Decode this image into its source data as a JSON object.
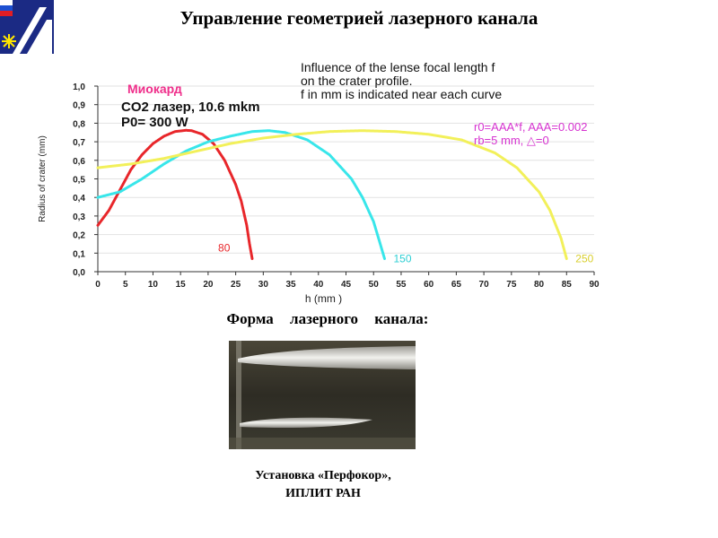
{
  "page": {
    "title": "Управление  геометрией лазерного канала",
    "subtitle": "Форма    лазерного    канала:",
    "caption_line1": "Установка «Перфокор»,",
    "caption_line2": "ИПЛИТ РАН"
  },
  "chart_data": {
    "type": "line",
    "title": "",
    "xlabel": "h (mm )",
    "ylabel": "Radius of crater (mm)",
    "xlim": [
      0,
      90
    ],
    "ylim": [
      0,
      1.0
    ],
    "xticks": [
      0,
      5,
      10,
      15,
      20,
      25,
      30,
      35,
      40,
      45,
      50,
      55,
      60,
      65,
      70,
      75,
      80,
      85,
      90
    ],
    "xtick_labels": [
      "0",
      "5",
      "10",
      "15",
      "20",
      "25",
      "30",
      "35",
      "40",
      "45",
      "50",
      "55",
      "60",
      "65",
      "70",
      "75",
      "80",
      "85",
      "90"
    ],
    "yticks": [
      0,
      0.1,
      0.2,
      0.3,
      0.4,
      0.5,
      0.6,
      0.7,
      0.8,
      0.9,
      1.0
    ],
    "ytick_labels": [
      "0,0",
      "0,1",
      "0,2",
      "0,3",
      "0,4",
      "0,5",
      "0,6",
      "0,7",
      "0,8",
      "0,9",
      "1,0"
    ],
    "annotations": {
      "tissue": "Миокард",
      "laser": "CO2 лазер, 10.6 mkm",
      "power": "P0= 300  W",
      "influence_line1": "Influence of the lense focal length f",
      "influence_line2": "on the crater profile.",
      "influence_line3": "f in mm is indicated near each curve",
      "params_line1": "r0=AAA*f, AAA=0.002",
      "params_line2": "rb=5 mm, △=0"
    },
    "series": [
      {
        "name": "80",
        "color": "#e8262a",
        "x": [
          0,
          2,
          4,
          6,
          8,
          10,
          12,
          14,
          16,
          17,
          19,
          21,
          23,
          25,
          26,
          27,
          27.5,
          28
        ],
        "y": [
          0.25,
          0.33,
          0.44,
          0.55,
          0.63,
          0.69,
          0.73,
          0.755,
          0.762,
          0.76,
          0.74,
          0.69,
          0.6,
          0.47,
          0.38,
          0.25,
          0.15,
          0.07
        ]
      },
      {
        "name": "150",
        "color": "#38e6ea",
        "x": [
          0,
          4,
          8,
          12,
          16,
          20,
          24,
          28,
          31,
          34,
          38,
          42,
          46,
          48,
          50,
          51,
          52
        ],
        "y": [
          0.4,
          0.43,
          0.5,
          0.58,
          0.65,
          0.7,
          0.73,
          0.755,
          0.76,
          0.75,
          0.71,
          0.63,
          0.5,
          0.4,
          0.27,
          0.17,
          0.07
        ]
      },
      {
        "name": "250",
        "color": "#f2f05a",
        "x": [
          0,
          6,
          12,
          18,
          24,
          30,
          36,
          42,
          48,
          54,
          60,
          66,
          72,
          76,
          80,
          82,
          84,
          85
        ],
        "y": [
          0.56,
          0.58,
          0.61,
          0.65,
          0.69,
          0.72,
          0.74,
          0.755,
          0.76,
          0.755,
          0.74,
          0.71,
          0.64,
          0.56,
          0.43,
          0.33,
          0.18,
          0.07
        ]
      }
    ]
  }
}
